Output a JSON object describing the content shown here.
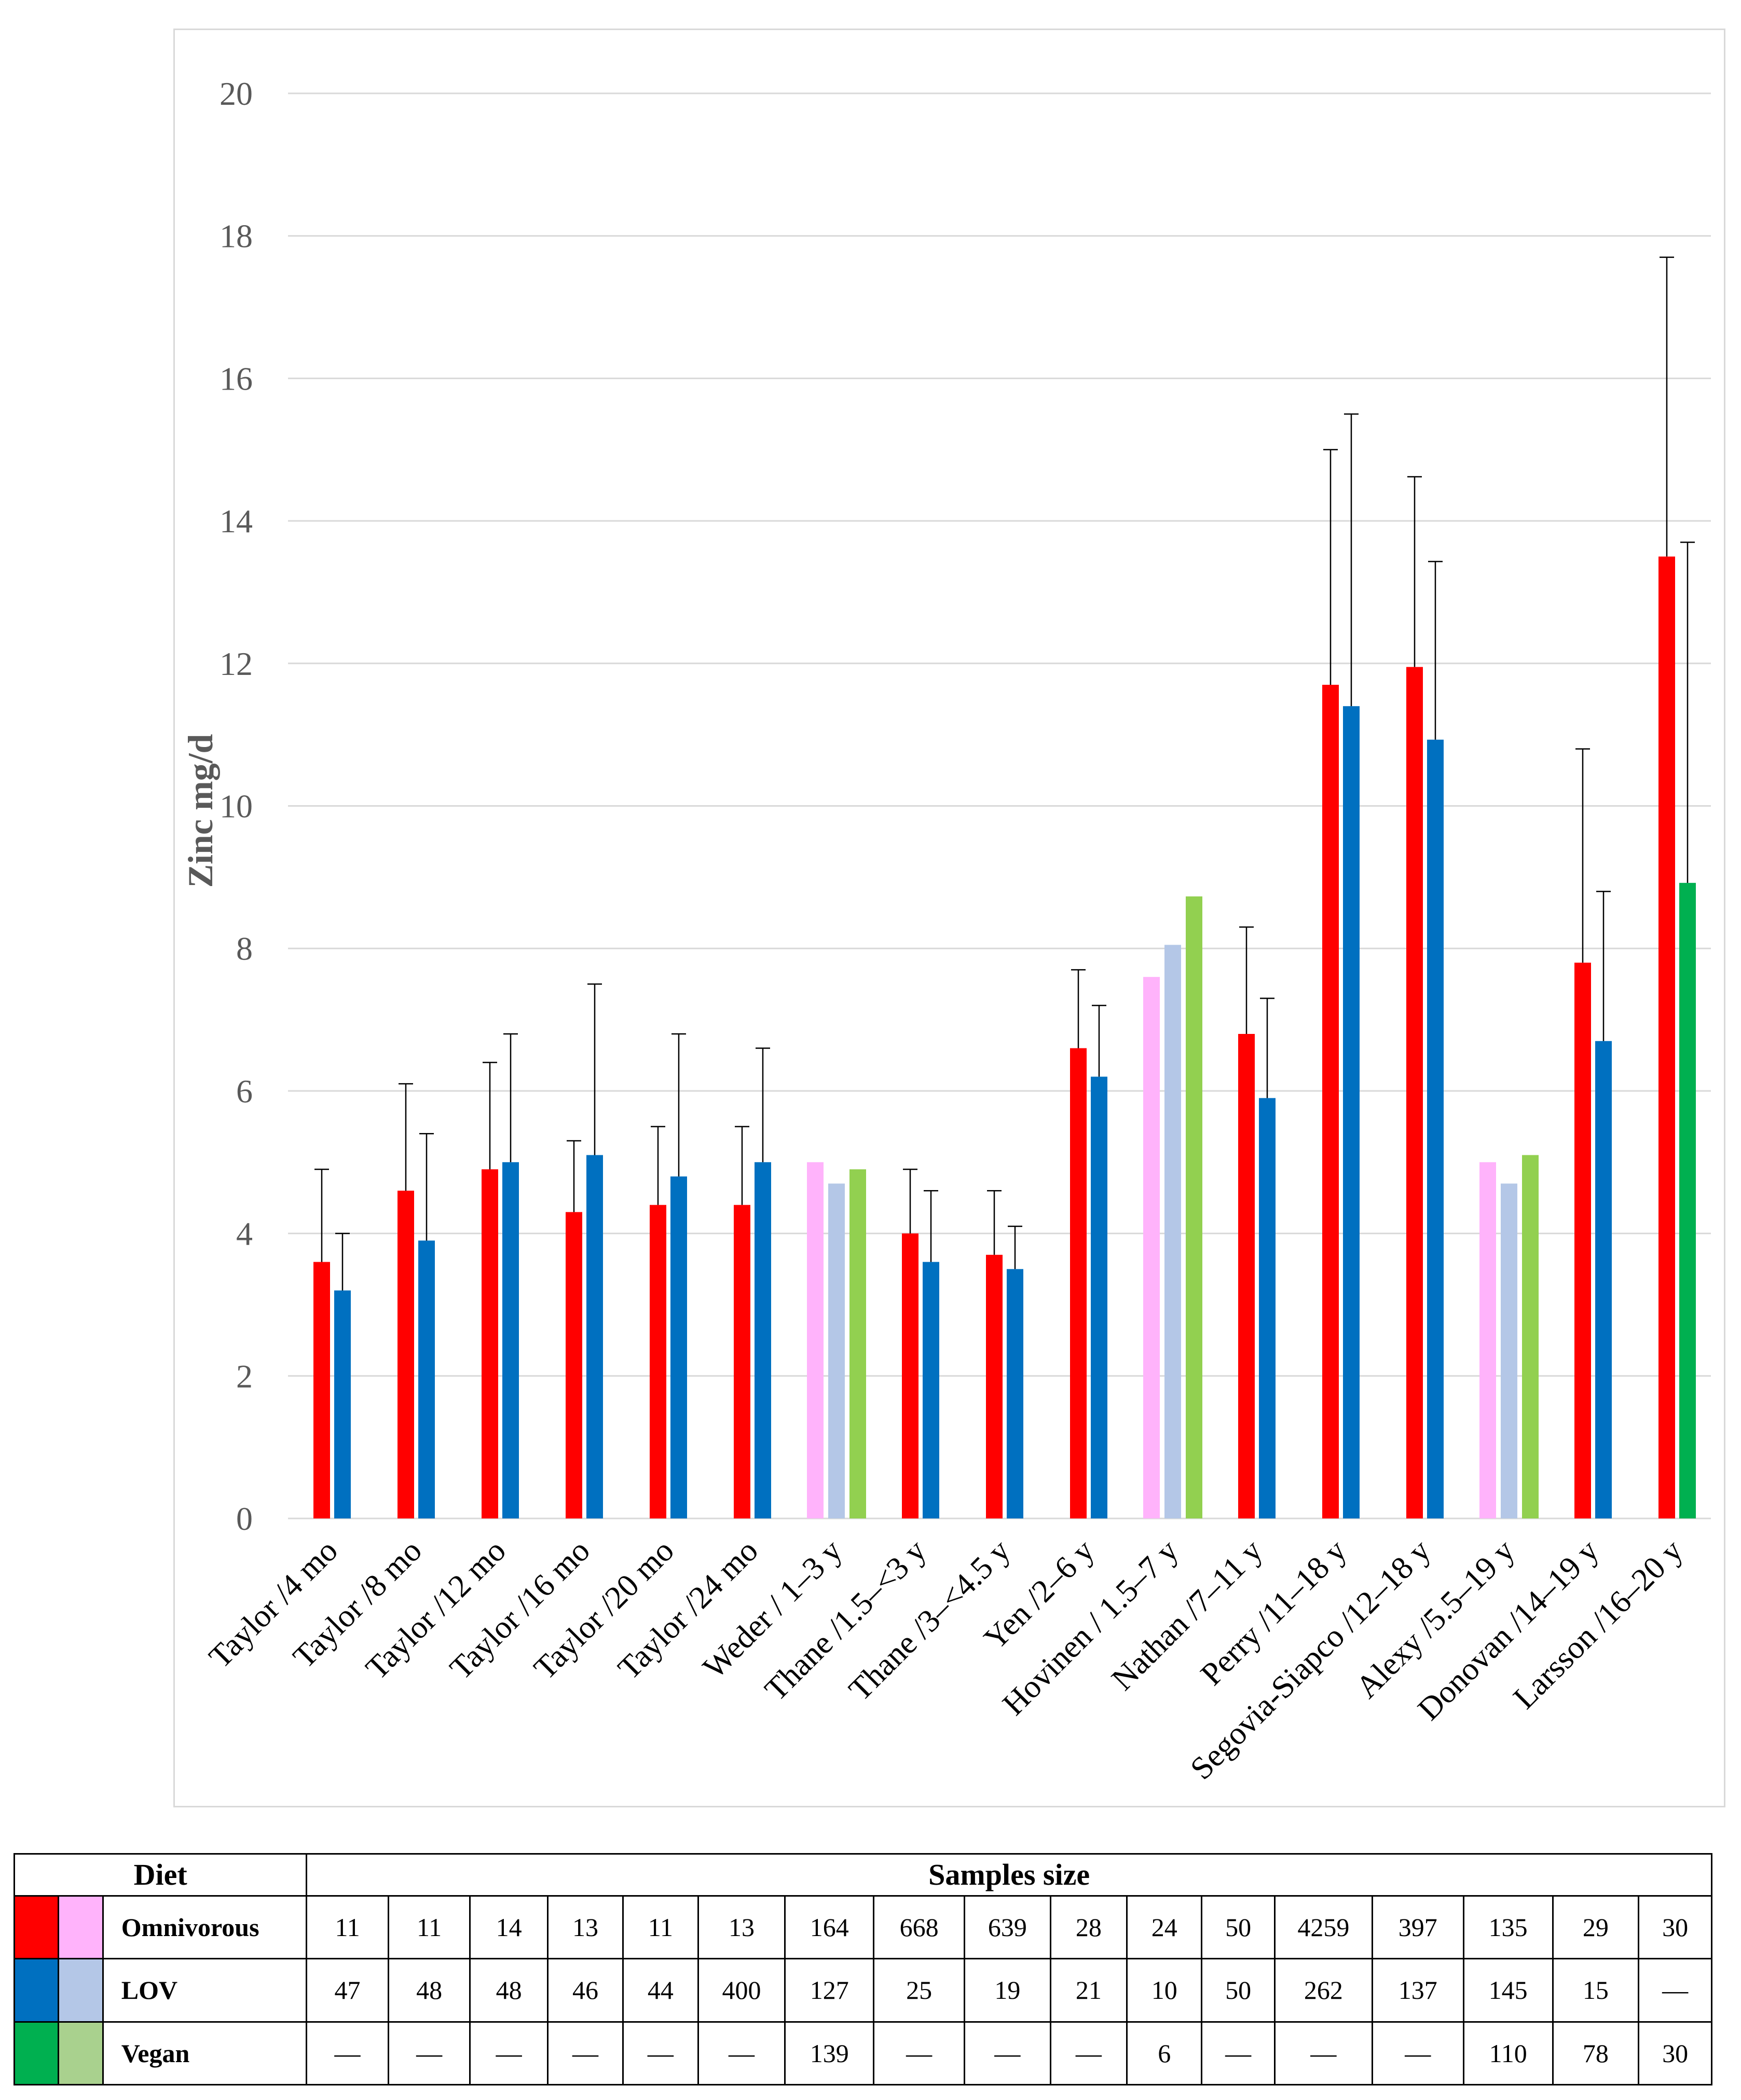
{
  "chart_data": {
    "type": "bar",
    "ylabel": "Zinc mg/d",
    "xlabel": "",
    "ylim": [
      0,
      20
    ],
    "yticks": [
      0,
      2,
      4,
      6,
      8,
      10,
      12,
      14,
      16,
      18,
      20
    ],
    "grid": true,
    "categories": [
      "Taylor /4 mo",
      "Taylor /8 mo",
      "Taylor /12 mo",
      "Taylor /16 mo",
      "Taylor /20 mo",
      "Taylor /24 mo",
      "Weder / 1–3 y",
      "Thane /1.5–<3 y",
      "Thane /3–<4.5 y",
      "Yen /2–6 y",
      "Hovinen / 1.5–7 y",
      "Nathan /7–11 y",
      "Perry /11–18 y",
      "Segovia-Siapco /12–18 y",
      "Alexy /5.5–19 y",
      "Donovan /14–19 y",
      "Larsson /16–20 y"
    ],
    "series": [
      {
        "name": "Omnivorous",
        "values": [
          3.6,
          4.6,
          4.9,
          4.3,
          4.4,
          4.4,
          5.0,
          4.0,
          3.7,
          6.6,
          7.6,
          6.8,
          11.7,
          11.95,
          5.0,
          7.8,
          13.5
        ],
        "error": [
          1.3,
          1.5,
          1.5,
          1.0,
          1.1,
          1.1,
          null,
          0.9,
          0.9,
          1.1,
          null,
          1.5,
          3.3,
          2.67,
          null,
          3.0,
          4.2
        ]
      },
      {
        "name": "LOV",
        "values": [
          3.2,
          3.9,
          5.0,
          5.1,
          4.8,
          5.0,
          4.7,
          3.6,
          3.5,
          6.2,
          8.05,
          5.9,
          11.4,
          10.93,
          4.7,
          6.7,
          null
        ],
        "error": [
          0.8,
          1.5,
          1.8,
          2.4,
          2.0,
          1.6,
          null,
          1.0,
          0.6,
          1.0,
          null,
          1.4,
          4.1,
          2.5,
          null,
          2.1,
          null
        ]
      },
      {
        "name": "Vegan",
        "values": [
          null,
          null,
          null,
          null,
          null,
          null,
          4.9,
          null,
          null,
          null,
          8.73,
          null,
          null,
          null,
          5.1,
          null,
          8.92
        ],
        "error": [
          null,
          null,
          null,
          null,
          null,
          null,
          null,
          null,
          null,
          null,
          null,
          null,
          null,
          null,
          null,
          null,
          4.78
        ]
      }
    ],
    "pale_categories": [
      6,
      10,
      14
    ]
  },
  "colors": {
    "omnivorous": "#ff0000",
    "omnivorous_pale": "#ffb3fb",
    "lov": "#0070c0",
    "lov_pale": "#b4c7e7",
    "vegan": "#00b050",
    "vegan_pale": "#92d050",
    "vegan_pale_swatch": "#a9d18e",
    "grid": "#d9d9d9",
    "error_bar": "#000000"
  },
  "table": {
    "diet_header": "Diet",
    "samples_header": "Samples size",
    "rows": [
      {
        "label": "Omnivorous",
        "cells": [
          "11",
          "11",
          "14",
          "13",
          "11",
          "13",
          "164",
          "668",
          "639",
          "28",
          "24",
          "50",
          "4259",
          "397",
          "135",
          "29",
          "30"
        ]
      },
      {
        "label": "LOV",
        "cells": [
          "47",
          "48",
          "48",
          "46",
          "44",
          "400",
          "127",
          "25",
          "19",
          "21",
          "10",
          "50",
          "262",
          "137",
          "145",
          "15",
          "—"
        ]
      },
      {
        "label": "Vegan",
        "cells": [
          "—",
          "—",
          "—",
          "—",
          "—",
          "—",
          "139",
          "—",
          "—",
          "—",
          "6",
          "—",
          "—",
          "—",
          "110",
          "78",
          "30"
        ]
      }
    ]
  }
}
